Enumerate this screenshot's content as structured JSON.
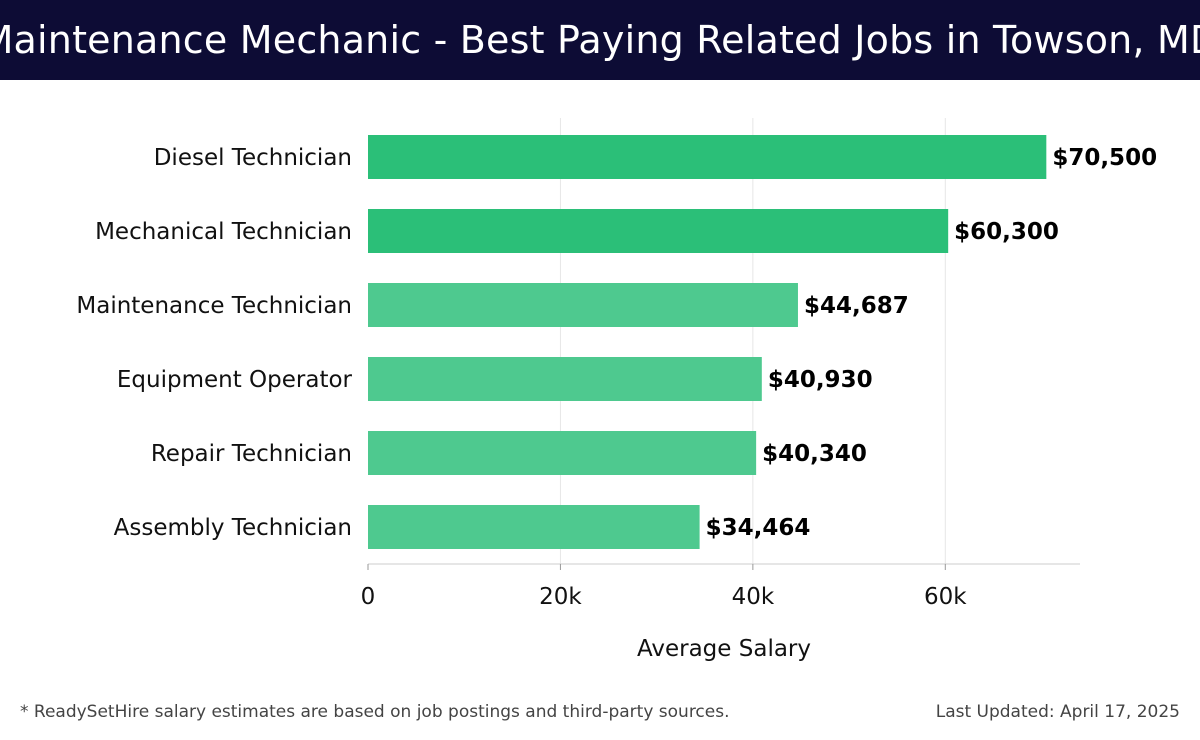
{
  "title": "Maintenance Mechanic - Best Paying Related Jobs in Towson, MD",
  "footer": {
    "note": "* ReadySetHire salary estimates are based on job postings and third-party sources.",
    "updated": "Last Updated: April 17, 2025"
  },
  "colors": {
    "header_bg": "#0d0c35",
    "bar_strong": "#2bbf78",
    "bar_light": "#4ec98f"
  },
  "chart_data": {
    "type": "bar",
    "orientation": "horizontal",
    "categories": [
      "Diesel Technician",
      "Mechanical Technician",
      "Maintenance Technician",
      "Equipment Operator",
      "Repair Technician",
      "Assembly Technician"
    ],
    "values": [
      70500,
      60300,
      44687,
      40930,
      40340,
      34464
    ],
    "value_labels": [
      "$70,500",
      "$60,300",
      "$44,687",
      "$40,930",
      "$40,340",
      "$34,464"
    ],
    "xticks": [
      0,
      20000,
      40000,
      60000
    ],
    "xtick_labels": [
      "0",
      "20k",
      "40k",
      "60k"
    ],
    "xlim": [
      0,
      74000
    ],
    "xlabel": "Average Salary",
    "grid": true
  }
}
